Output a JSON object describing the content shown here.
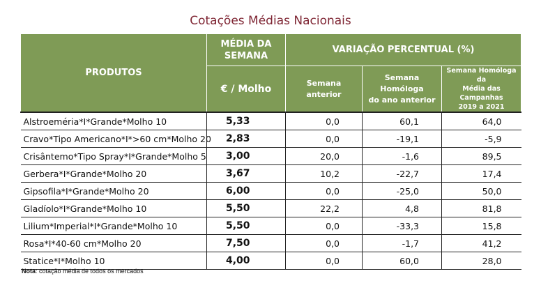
{
  "title": "Cotações Médias Nacionais",
  "table": {
    "headers": {
      "products": "PRODUTOS",
      "avg_week_line1": "MÉDIA DA",
      "avg_week_line2": "SEMANA",
      "unit": "€ / Molho",
      "variation": "VARIAÇÃO PERCENTUAL (%)",
      "prev_week_line1": "Semana",
      "prev_week_line2": "anterior",
      "homologous_line1": "Semana Homóloga",
      "homologous_line2": "do ano anterior",
      "campaign_line1": "Semana Homóloga da",
      "campaign_line2": "Média das Campanhas",
      "campaign_line3": "2019 a 2021"
    },
    "rows": [
      {
        "product": "Alstroeméria*I*Grande*Molho 10",
        "price": "5,33",
        "prev_week": "0,0",
        "homologous_prev_year": "60,1",
        "homologous_campaigns": "64,0"
      },
      {
        "product": "Cravo*Tipo Americano*I*>60 cm*Molho 20",
        "price": "2,83",
        "prev_week": "0,0",
        "homologous_prev_year": "-19,1",
        "homologous_campaigns": "-5,9"
      },
      {
        "product": "Crisântemo*Tipo Spray*I*Grande*Molho 5",
        "price": "3,00",
        "prev_week": "20,0",
        "homologous_prev_year": "-1,6",
        "homologous_campaigns": "89,5"
      },
      {
        "product": "Gerbera*I*Grande*Molho 20",
        "price": "3,67",
        "prev_week": "10,2",
        "homologous_prev_year": "-22,7",
        "homologous_campaigns": "17,4"
      },
      {
        "product": "Gipsofila*I*Grande*Molho 20",
        "price": "6,00",
        "prev_week": "0,0",
        "homologous_prev_year": "-25,0",
        "homologous_campaigns": "50,0"
      },
      {
        "product": "Gladíolo*I*Grande*Molho 10",
        "price": "5,50",
        "prev_week": "22,2",
        "homologous_prev_year": "4,8",
        "homologous_campaigns": "81,8"
      },
      {
        "product": "Lilium*Imperial*I*Grande*Molho 10",
        "price": "5,50",
        "prev_week": "0,0",
        "homologous_prev_year": "-33,3",
        "homologous_campaigns": "15,8"
      },
      {
        "product": "Rosa*I*40-60 cm*Molho 20",
        "price": "7,50",
        "prev_week": "0,0",
        "homologous_prev_year": "-1,7",
        "homologous_campaigns": "41,2"
      },
      {
        "product": "Statice*I*Molho 10",
        "price": "4,00",
        "prev_week": "0,0",
        "homologous_prev_year": "60,0",
        "homologous_campaigns": "28,0"
      }
    ]
  },
  "note": {
    "label": "Nota",
    "text": ": cotação média de todos os mercados"
  },
  "colors": {
    "title": "#7f2634",
    "header_bg": "#7f9b56",
    "header_text": "#ffffff"
  }
}
